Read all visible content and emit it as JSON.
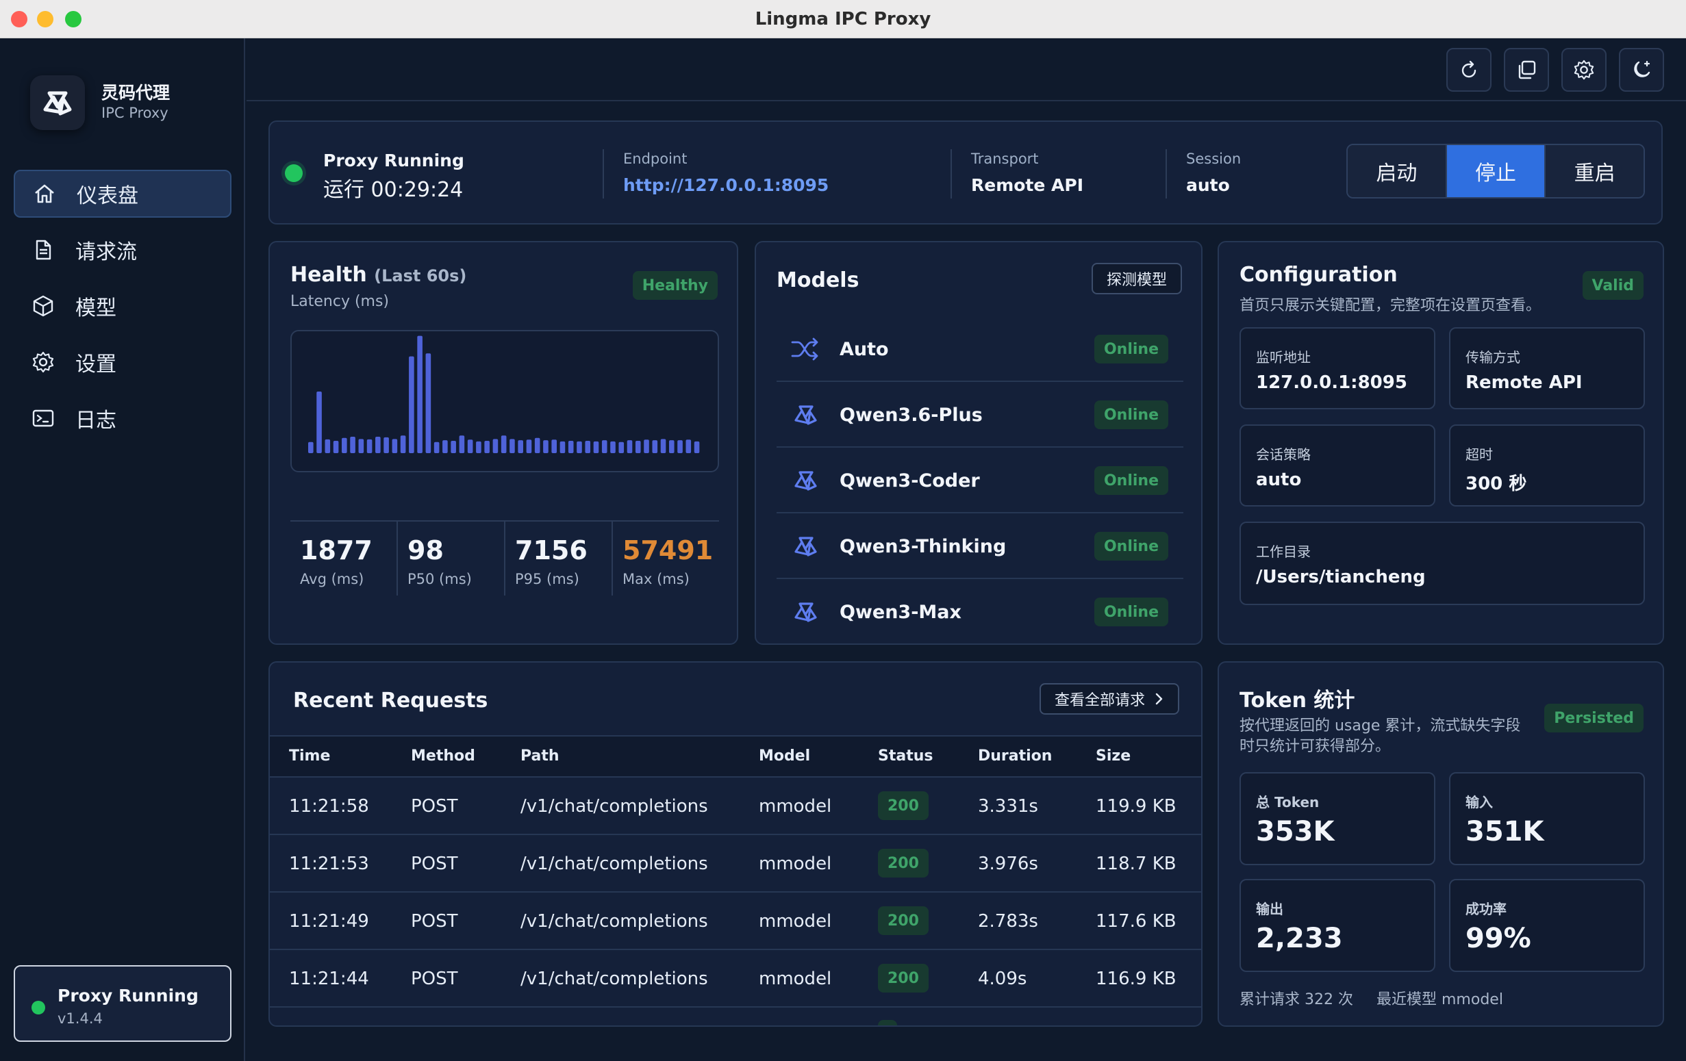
{
  "window": {
    "title": "Lingma IPC Proxy"
  },
  "brand": {
    "name": "灵码代理",
    "subtitle": "IPC Proxy"
  },
  "nav": [
    {
      "label": "仪表盘",
      "icon": "home-icon",
      "active": true
    },
    {
      "label": "请求流",
      "icon": "document-icon",
      "active": false
    },
    {
      "label": "模型",
      "icon": "cube-icon",
      "active": false
    },
    {
      "label": "设置",
      "icon": "gear-icon",
      "active": false
    },
    {
      "label": "日志",
      "icon": "terminal-icon",
      "active": false
    }
  ],
  "sidebar_status": {
    "title": "Proxy Running",
    "version": "v1.4.4"
  },
  "toolbar": {
    "icons": [
      "refresh-icon",
      "copy-icon",
      "settings-icon",
      "theme-moon-icon"
    ]
  },
  "status": {
    "title": "Proxy Running",
    "uptime": "运行 00:29:24",
    "endpoint_label": "Endpoint",
    "endpoint": "http://127.0.0.1:8095",
    "transport_label": "Transport",
    "transport": "Remote API",
    "session_label": "Session",
    "session": "auto",
    "buttons": {
      "start": "启动",
      "stop": "停止",
      "restart": "重启"
    },
    "active_button": "stop"
  },
  "health": {
    "title": "Health",
    "title_suffix": "(Last 60s)",
    "subtitle": "Latency (ms)",
    "badge": "Healthy",
    "latency_series": [
      380,
      2100,
      470,
      420,
      520,
      560,
      480,
      470,
      560,
      540,
      480,
      600,
      3300,
      4000,
      3400,
      380,
      440,
      420,
      600,
      460,
      400,
      420,
      480,
      600,
      480,
      440,
      460,
      520,
      440,
      460,
      400,
      420,
      400,
      420,
      400,
      440,
      400,
      380,
      440,
      420,
      460,
      440,
      480,
      440,
      440,
      460,
      400
    ],
    "stats": [
      {
        "value": "1877",
        "label": "Avg (ms)"
      },
      {
        "value": "98",
        "label": "P50 (ms)"
      },
      {
        "value": "7156",
        "label": "P95 (ms)"
      },
      {
        "value": "57491",
        "label": "Max (ms)"
      }
    ]
  },
  "models": {
    "title": "Models",
    "probe_button": "探测模型",
    "items": [
      {
        "name": "Auto",
        "status": "Online",
        "icon": "shuffle-icon"
      },
      {
        "name": "Qwen3.6-Plus",
        "status": "Online",
        "icon": "qwen-logo-icon"
      },
      {
        "name": "Qwen3-Coder",
        "status": "Online",
        "icon": "qwen-logo-icon"
      },
      {
        "name": "Qwen3-Thinking",
        "status": "Online",
        "icon": "qwen-logo-icon"
      },
      {
        "name": "Qwen3-Max",
        "status": "Online",
        "icon": "qwen-logo-icon"
      }
    ]
  },
  "config": {
    "title": "Configuration",
    "subtitle": "首页只展示关键配置，完整项在设置页查看。",
    "badge": "Valid",
    "listen_label": "监听地址",
    "listen": "127.0.0.1:8095",
    "transport_label": "传输方式",
    "transport": "Remote API",
    "session_label": "会话策略",
    "session": "auto",
    "timeout_label": "超时",
    "timeout": "300 秒",
    "workdir_label": "工作目录",
    "workdir": "/Users/tiancheng"
  },
  "requests": {
    "title": "Recent Requests",
    "view_all": "查看全部请求",
    "columns": [
      "Time",
      "Method",
      "Path",
      "Model",
      "Status",
      "Duration",
      "Size"
    ],
    "rows": [
      {
        "time": "11:21:58",
        "method": "POST",
        "path": "/v1/chat/completions",
        "model": "mmodel",
        "status": "200",
        "duration": "3.331s",
        "size": "119.9 KB"
      },
      {
        "time": "11:21:53",
        "method": "POST",
        "path": "/v1/chat/completions",
        "model": "mmodel",
        "status": "200",
        "duration": "3.976s",
        "size": "118.7 KB"
      },
      {
        "time": "11:21:49",
        "method": "POST",
        "path": "/v1/chat/completions",
        "model": "mmodel",
        "status": "200",
        "duration": "2.783s",
        "size": "117.6 KB"
      },
      {
        "time": "11:21:44",
        "method": "POST",
        "path": "/v1/chat/completions",
        "model": "mmodel",
        "status": "200",
        "duration": "4.09s",
        "size": "116.9 KB"
      }
    ]
  },
  "tokens": {
    "title": "Token 统计",
    "subtitle_line1": "按代理返回的 usage 累计，流式缺失字段",
    "subtitle_line2": "时只统计可获得部分。",
    "badge": "Persisted",
    "total_label": "总 Token",
    "total": "353K",
    "input_label": "输入",
    "input": "351K",
    "output_label": "输出",
    "output": "2,233",
    "success_label": "成功率",
    "success": "99%",
    "footer_requests": "累计请求 322 次",
    "footer_model": "最近模型 mmodel"
  },
  "colors": {
    "accent": "#2f6fe0",
    "success": "#22c55e",
    "warning": "#e08a36",
    "link": "#6e9cf5",
    "bar": "#4f63d9"
  }
}
